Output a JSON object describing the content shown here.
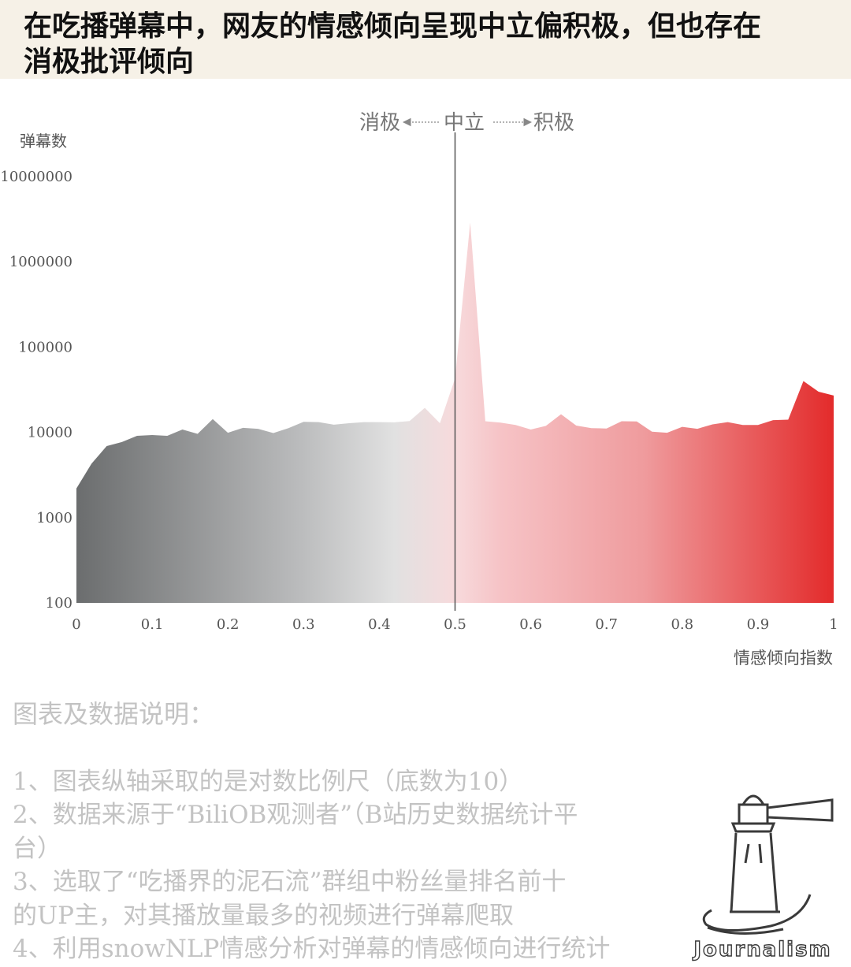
{
  "header": {
    "title_line1": "在吃播弹幕中，网友的情感倾向呈现中立偏积极，但也存在",
    "title_line2": "消极批评倾向"
  },
  "chart_data": {
    "type": "area",
    "ylabel": "弹幕数",
    "xlabel": "情感倾向指数",
    "y_scale": "log",
    "y_ticks": [
      "10000000",
      "1000000",
      "100000",
      "10000",
      "1000",
      "100"
    ],
    "x_ticks": [
      "0",
      "0.1",
      "0.2",
      "0.3",
      "0.4",
      "0.5",
      "0.6",
      "0.7",
      "0.8",
      "0.9",
      "1"
    ],
    "xlim": [
      0,
      1
    ],
    "ylim": [
      100,
      10000000
    ],
    "annotation": {
      "negative": "消极",
      "neutral": "中立",
      "positive": "积极"
    },
    "colors": {
      "negative": "#6b6d6e",
      "neutral_light": "#f7d8da",
      "positive": "#e53030",
      "divider": "#555555"
    },
    "series": [
      {
        "x": [
          0,
          0.02,
          0.04,
          0.06,
          0.08,
          0.1,
          0.12,
          0.14,
          0.16,
          0.18,
          0.2,
          0.22,
          0.24,
          0.26,
          0.28,
          0.3,
          0.32,
          0.34,
          0.36,
          0.38,
          0.4,
          0.42,
          0.44,
          0.46,
          0.48,
          0.5,
          0.52,
          0.54,
          0.56,
          0.58,
          0.6,
          0.62,
          0.64,
          0.66,
          0.68,
          0.7,
          0.72,
          0.74,
          0.76,
          0.78,
          0.8,
          0.82,
          0.84,
          0.86,
          0.88,
          0.9,
          0.92,
          0.94,
          0.96,
          0.98,
          1
        ],
        "values": [
          2200,
          4300,
          6900,
          7700,
          9100,
          9300,
          9100,
          10800,
          9600,
          14300,
          9900,
          11300,
          11000,
          9800,
          11200,
          13300,
          13200,
          12300,
          12800,
          13200,
          13200,
          13100,
          13600,
          19400,
          12800,
          43000,
          2900000,
          13500,
          13000,
          12200,
          10800,
          11900,
          16300,
          12000,
          11200,
          11100,
          13500,
          13400,
          10200,
          9900,
          11600,
          11000,
          12400,
          13200,
          12200,
          12200,
          13900,
          14100,
          40000,
          30000,
          27000
        ]
      }
    ]
  },
  "notes": {
    "heading": "图表及数据说明：",
    "lines": [
      "1、图表纵轴采取的是对数比例尺（底数为10）",
      "2、数据来源于“BiliOB观测者”（B站历史数据统计平",
      "台）",
      "3、选取了“吃播界的泥石流”群组中粉丝量排名前十",
      "的UP主，对其播放量最多的视频进行弹幕爬取",
      "4、利用snowNLP情感分析对弹幕的情感倾向进行统计"
    ]
  },
  "logo": {
    "text": "Journalism"
  }
}
